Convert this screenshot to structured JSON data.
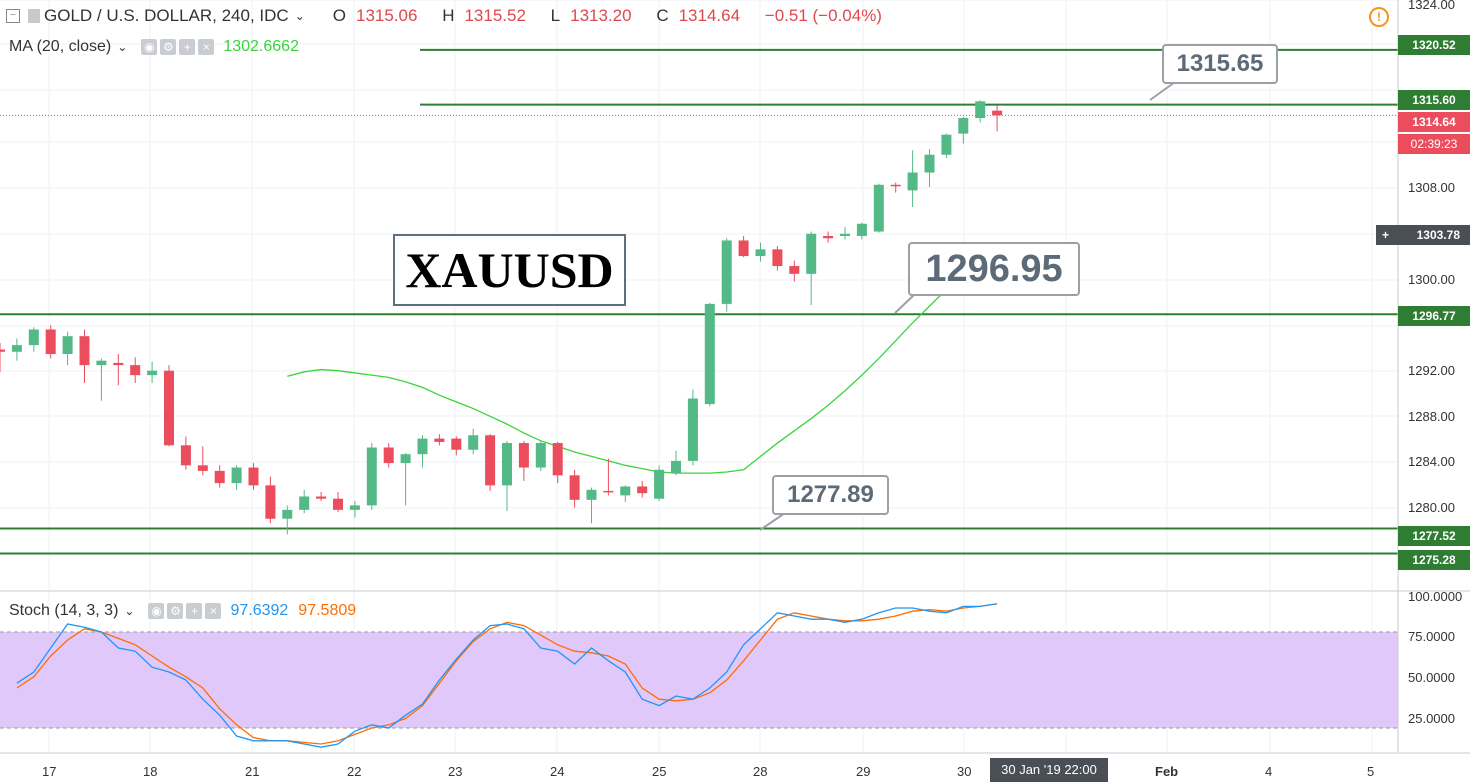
{
  "header": {
    "symbol_title": "GOLD / U.S. DOLLAR, 240, IDC",
    "ohlc": {
      "o_label": "O",
      "o": "1315.06",
      "h_label": "H",
      "h": "1315.52",
      "l_label": "L",
      "l": "1313.20",
      "c_label": "C",
      "c": "1314.64",
      "change": "−0.51 (−0.04%)"
    },
    "ma_label": "MA (20, close)",
    "ma_value": "1302.6662",
    "stoch_label": "Stoch (14, 3, 3)",
    "stoch_k": "97.6392",
    "stoch_d": "97.5809"
  },
  "annotations": {
    "symbol_box": "XAUUSD",
    "callout_top": "1315.65",
    "callout_mid": "1296.95",
    "callout_low": "1277.89"
  },
  "price_axis": {
    "ticks": [
      "1324.00",
      "1308.00",
      "1300.00",
      "1292.00",
      "1288.00",
      "1284.00",
      "1280.00"
    ],
    "badges": {
      "r1": "1320.52",
      "r2": "1315.60",
      "last": "1314.64",
      "countdown": "02:39:23",
      "crosshair": "1303.78",
      "s1": "1296.77",
      "s2": "1277.52",
      "s3": "1275.28"
    }
  },
  "stoch_axis": {
    "ticks": [
      "100.0000",
      "75.0000",
      "50.0000",
      "25.0000"
    ]
  },
  "time_axis": {
    "labels": [
      "17",
      "18",
      "21",
      "22",
      "23",
      "24",
      "25",
      "28",
      "29",
      "30",
      "Feb",
      "4",
      "5"
    ],
    "cursor": "30 Jan '19   22:00"
  },
  "colors": {
    "up": "#53b987",
    "down": "#eb4d5c",
    "level": "#2e7d32",
    "ma": "#3ad43a",
    "stoch_k": "#2196f3",
    "stoch_d": "#ff6d00",
    "band": "#e1c8fa"
  },
  "chart_data": {
    "type": "candlestick",
    "timeframe": "240",
    "candles": [
      [
        1293.6,
        1294.2,
        1291.6,
        1293.4
      ],
      [
        1293.4,
        1294.6,
        1292.6,
        1294.0
      ],
      [
        1294.0,
        1295.6,
        1293.4,
        1295.4
      ],
      [
        1295.4,
        1295.8,
        1292.8,
        1293.2
      ],
      [
        1293.2,
        1295.2,
        1292.2,
        1294.8
      ],
      [
        1294.8,
        1295.4,
        1290.6,
        1292.2
      ],
      [
        1292.2,
        1292.8,
        1289.0,
        1292.6
      ],
      [
        1292.4,
        1293.2,
        1290.4,
        1292.2
      ],
      [
        1292.2,
        1292.9,
        1290.6,
        1291.3
      ],
      [
        1291.3,
        1292.5,
        1290.6,
        1291.7
      ],
      [
        1291.7,
        1292.2,
        1284.9,
        1285.0
      ],
      [
        1285.0,
        1285.8,
        1282.8,
        1283.2
      ],
      [
        1283.2,
        1284.9,
        1282.3,
        1282.7
      ],
      [
        1282.7,
        1283.2,
        1281.2,
        1281.6
      ],
      [
        1281.6,
        1283.2,
        1281.0,
        1283.0
      ],
      [
        1283.0,
        1283.4,
        1281.0,
        1281.4
      ],
      [
        1281.4,
        1282.2,
        1278.0,
        1278.4
      ],
      [
        1278.4,
        1279.6,
        1277.0,
        1279.2
      ],
      [
        1279.2,
        1281.0,
        1278.9,
        1280.4
      ],
      [
        1280.4,
        1280.8,
        1280.0,
        1280.2
      ],
      [
        1280.2,
        1280.8,
        1279.0,
        1279.2
      ],
      [
        1279.2,
        1280.0,
        1278.5,
        1279.6
      ],
      [
        1279.6,
        1285.2,
        1279.2,
        1284.8
      ],
      [
        1284.8,
        1285.2,
        1283.0,
        1283.4
      ],
      [
        1283.4,
        1284.3,
        1279.6,
        1284.2
      ],
      [
        1284.2,
        1285.9,
        1283.0,
        1285.6
      ],
      [
        1285.6,
        1286.0,
        1285.0,
        1285.3
      ],
      [
        1285.6,
        1285.8,
        1284.1,
        1284.6
      ],
      [
        1284.6,
        1286.5,
        1284.2,
        1285.9
      ],
      [
        1285.9,
        1286.0,
        1280.9,
        1281.4
      ],
      [
        1281.4,
        1285.4,
        1279.1,
        1285.2
      ],
      [
        1285.2,
        1285.4,
        1281.8,
        1283.0
      ],
      [
        1283.0,
        1285.4,
        1282.7,
        1285.2
      ],
      [
        1285.2,
        1285.3,
        1281.6,
        1282.3
      ],
      [
        1282.3,
        1282.8,
        1279.4,
        1280.1
      ],
      [
        1280.1,
        1281.2,
        1278.0,
        1281.0
      ],
      [
        1280.9,
        1283.8,
        1280.5,
        1280.8
      ],
      [
        1280.5,
        1281.4,
        1279.9,
        1281.3
      ],
      [
        1281.3,
        1281.8,
        1280.3,
        1280.7
      ],
      [
        1280.2,
        1283.2,
        1280.0,
        1282.8
      ],
      [
        1282.5,
        1284.5,
        1282.3,
        1283.6
      ],
      [
        1283.6,
        1290.0,
        1283.2,
        1289.2
      ],
      [
        1288.7,
        1297.8,
        1288.5,
        1297.7
      ],
      [
        1297.7,
        1303.6,
        1297.0,
        1303.4
      ],
      [
        1303.4,
        1303.8,
        1301.9,
        1302.0
      ],
      [
        1302.0,
        1303.2,
        1301.5,
        1302.6
      ],
      [
        1302.6,
        1302.9,
        1300.7,
        1301.1
      ],
      [
        1301.1,
        1301.6,
        1299.7,
        1300.4
      ],
      [
        1300.4,
        1304.2,
        1297.6,
        1304.0
      ],
      [
        1303.8,
        1304.2,
        1303.2,
        1303.6
      ],
      [
        1303.8,
        1304.6,
        1303.5,
        1304.0
      ],
      [
        1303.8,
        1305.0,
        1303.5,
        1304.9
      ],
      [
        1304.2,
        1308.5,
        1304.1,
        1308.4
      ],
      [
        1308.4,
        1308.6,
        1307.7,
        1308.3
      ],
      [
        1307.9,
        1311.5,
        1306.4,
        1309.5
      ],
      [
        1309.5,
        1311.6,
        1308.2,
        1311.1
      ],
      [
        1311.1,
        1313.0,
        1310.8,
        1312.9
      ],
      [
        1313.0,
        1314.5,
        1312.1,
        1314.4
      ],
      [
        1314.4,
        1316.0,
        1314.0,
        1315.9
      ],
      [
        1315.06,
        1315.52,
        1313.2,
        1314.64
      ]
    ],
    "ma20": [
      1291.2,
      1291.6,
      1291.8,
      1291.7,
      1291.5,
      1291.3,
      1291.1,
      1290.7,
      1290.2,
      1289.5,
      1288.9,
      1288.3,
      1287.6,
      1286.9,
      1286.1,
      1285.4,
      1284.9,
      1284.4,
      1284.0,
      1283.6,
      1283.2,
      1282.9,
      1282.6,
      1282.5,
      1282.5,
      1282.5,
      1282.6,
      1282.8,
      1284.0,
      1285.2,
      1286.3,
      1287.4,
      1288.6,
      1289.9,
      1291.3,
      1292.8,
      1294.4,
      1296.0,
      1297.5,
      1299.0,
      1300.4,
      1301.6,
      1302.6662
    ],
    "stoch_k": [
      48,
      55,
      70,
      85,
      83,
      80,
      70,
      68,
      58,
      55,
      50,
      38,
      28,
      15,
      12,
      12,
      12,
      10,
      8,
      10,
      18,
      22,
      20,
      28,
      35,
      50,
      63,
      75,
      84,
      85,
      82,
      70,
      68,
      60,
      70,
      62,
      55,
      38,
      34,
      40,
      38,
      45,
      55,
      72,
      82,
      92,
      90,
      88,
      88,
      86,
      88,
      92,
      95,
      95,
      93,
      92,
      96,
      96,
      97.6392
    ],
    "stoch_d": [
      45,
      52,
      65,
      75,
      82,
      80,
      76,
      72,
      65,
      58,
      52,
      45,
      32,
      22,
      14,
      12,
      12,
      11,
      10,
      12,
      16,
      20,
      22,
      26,
      34,
      48,
      62,
      74,
      82,
      86,
      84,
      78,
      72,
      68,
      67,
      65,
      60,
      45,
      38,
      37,
      38,
      42,
      50,
      62,
      75,
      88,
      92,
      90,
      88,
      87,
      87,
      88,
      90,
      93,
      94,
      93,
      95,
      96,
      97.5809
    ],
    "price_ylim": [
      1272.0,
      1325.0
    ],
    "stoch_ylim": [
      5,
      105
    ],
    "levels": [
      1320.52,
      1315.6,
      1296.77,
      1277.52,
      1275.28
    ],
    "last_price": 1314.64
  }
}
